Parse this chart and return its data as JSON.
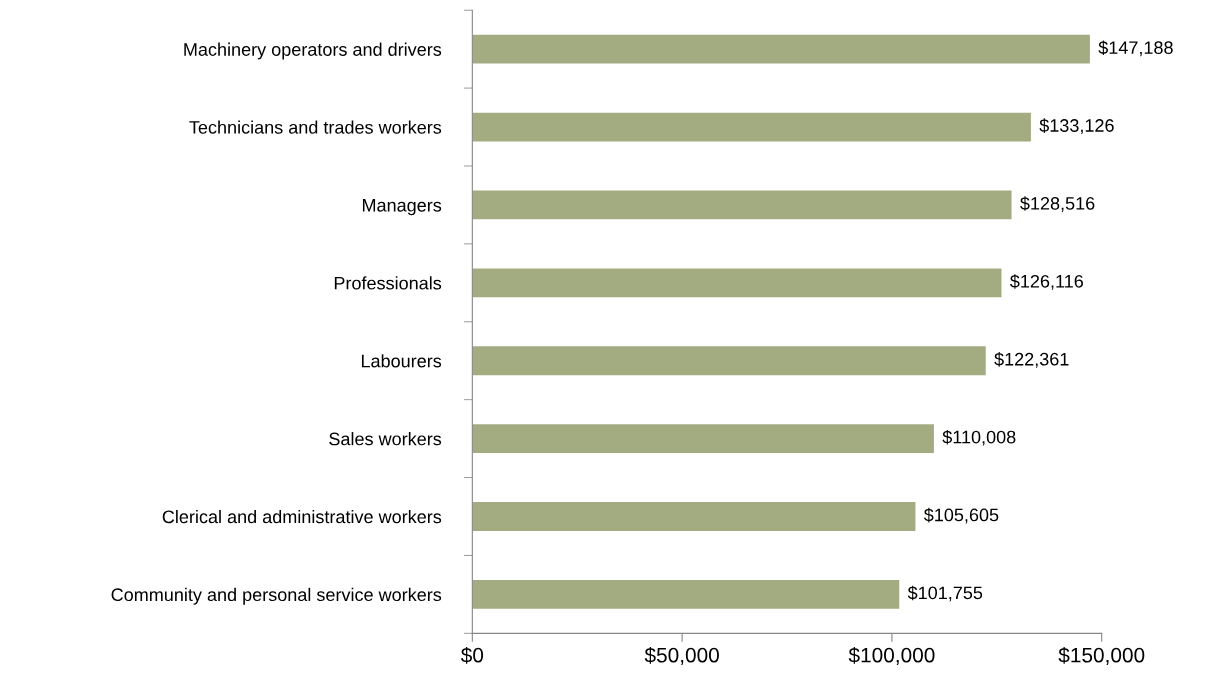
{
  "chart_data": {
    "type": "bar",
    "orientation": "horizontal",
    "categories": [
      "Machinery operators and drivers",
      "Technicians and trades workers",
      "Managers",
      "Professionals",
      "Labourers",
      "Sales workers",
      "Clerical and administrative workers",
      "Community and personal service workers"
    ],
    "values": [
      147188,
      133126,
      128516,
      126116,
      122361,
      110008,
      105605,
      101755
    ],
    "value_labels": [
      "$147,188",
      "$133,126",
      "$128,516",
      "$126,116",
      "$122,361",
      "$110,008",
      "$105,605",
      "$101,755"
    ],
    "color": "#a3ab80",
    "xlim": [
      0,
      150000
    ],
    "xticks": [
      {
        "value": 0,
        "label": "$0"
      },
      {
        "value": 50000,
        "label": "$50,000"
      },
      {
        "value": 100000,
        "label": "$100,000"
      },
      {
        "value": 150000,
        "label": "$150,000"
      }
    ],
    "grid": false,
    "legend": false
  }
}
